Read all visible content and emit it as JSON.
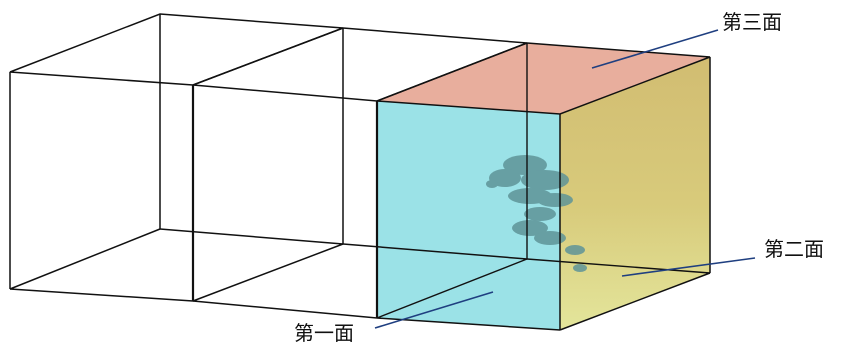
{
  "labels": {
    "face_one": "第一面",
    "face_two": "第二面",
    "face_three": "第三面"
  },
  "colors": {
    "face_one_fill": "#8fdde3",
    "face_two_fill": "#d9cc6e",
    "face_three_fill": "#e3a594",
    "edge": "#111111",
    "leader": "#1f3f80",
    "smoke": "#5a8f93"
  }
}
